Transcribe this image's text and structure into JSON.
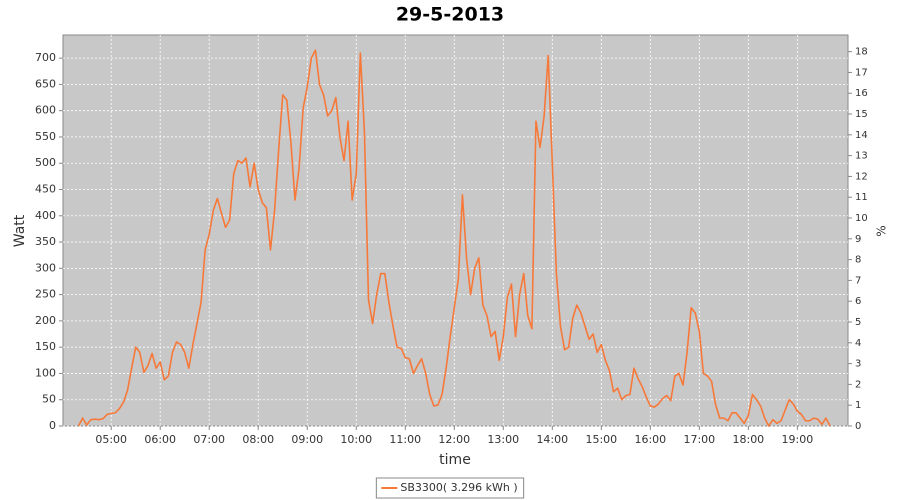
{
  "chart_data": {
    "type": "line",
    "title": "29-5-2013",
    "x_label": "time",
    "y_label": "Watt",
    "y2_label": "%",
    "x": [
      "04:20",
      "04:25",
      "04:30",
      "04:35",
      "04:40",
      "04:45",
      "04:50",
      "04:55",
      "05:00",
      "05:05",
      "05:10",
      "05:15",
      "05:20",
      "05:25",
      "05:30",
      "05:35",
      "05:40",
      "05:45",
      "05:50",
      "05:55",
      "06:00",
      "06:05",
      "06:10",
      "06:15",
      "06:20",
      "06:25",
      "06:30",
      "06:35",
      "06:40",
      "06:45",
      "06:50",
      "06:55",
      "07:00",
      "07:05",
      "07:10",
      "07:15",
      "07:20",
      "07:25",
      "07:30",
      "07:35",
      "07:40",
      "07:45",
      "07:50",
      "07:55",
      "08:00",
      "08:05",
      "08:10",
      "08:15",
      "08:20",
      "08:25",
      "08:30",
      "08:35",
      "08:40",
      "08:45",
      "08:50",
      "08:55",
      "09:00",
      "09:05",
      "09:10",
      "09:15",
      "09:20",
      "09:25",
      "09:30",
      "09:35",
      "09:40",
      "09:45",
      "09:50",
      "09:55",
      "10:00",
      "10:05",
      "10:10",
      "10:15",
      "10:20",
      "10:25",
      "10:30",
      "10:35",
      "10:40",
      "10:45",
      "10:50",
      "10:55",
      "11:00",
      "11:05",
      "11:10",
      "11:15",
      "11:20",
      "11:25",
      "11:30",
      "11:35",
      "11:40",
      "11:45",
      "11:50",
      "11:55",
      "12:00",
      "12:05",
      "12:10",
      "12:15",
      "12:20",
      "12:25",
      "12:30",
      "12:35",
      "12:40",
      "12:45",
      "12:50",
      "12:55",
      "13:00",
      "13:05",
      "13:10",
      "13:15",
      "13:20",
      "13:25",
      "13:30",
      "13:35",
      "13:40",
      "13:45",
      "13:50",
      "13:55",
      "14:00",
      "14:05",
      "14:10",
      "14:15",
      "14:20",
      "14:25",
      "14:30",
      "14:35",
      "14:40",
      "14:45",
      "14:50",
      "14:55",
      "15:00",
      "15:05",
      "15:10",
      "15:15",
      "15:20",
      "15:25",
      "15:30",
      "15:35",
      "15:40",
      "15:45",
      "15:50",
      "15:55",
      "16:00",
      "16:05",
      "16:10",
      "16:15",
      "16:20",
      "16:25",
      "16:30",
      "16:35",
      "16:40",
      "16:45",
      "16:50",
      "16:55",
      "17:00",
      "17:05",
      "17:10",
      "17:15",
      "17:20",
      "17:25",
      "17:30",
      "17:35",
      "17:40",
      "17:45",
      "17:50",
      "17:55",
      "18:00",
      "18:05",
      "18:10",
      "18:15",
      "18:20",
      "18:25",
      "18:30",
      "18:35",
      "18:40",
      "18:45",
      "18:50",
      "18:55",
      "19:00",
      "19:05",
      "19:10",
      "19:15",
      "19:20",
      "19:25",
      "19:30",
      "19:35",
      "19:40"
    ],
    "series": [
      {
        "name": "SB3300( 3.296 kWh )",
        "color": "#f7793a",
        "values": [
          0,
          15,
          2,
          12,
          13,
          12,
          14,
          22,
          24,
          25,
          33,
          45,
          68,
          110,
          150,
          140,
          102,
          115,
          138,
          110,
          122,
          88,
          95,
          140,
          160,
          155,
          140,
          110,
          155,
          195,
          235,
          335,
          365,
          410,
          433,
          405,
          378,
          392,
          480,
          505,
          500,
          510,
          455,
          500,
          450,
          425,
          415,
          335,
          410,
          525,
          630,
          620,
          540,
          430,
          490,
          605,
          645,
          700,
          715,
          650,
          630,
          590,
          600,
          625,
          550,
          505,
          580,
          430,
          480,
          710,
          560,
          240,
          195,
          250,
          290,
          290,
          235,
          190,
          150,
          148,
          130,
          128,
          100,
          115,
          128,
          100,
          60,
          38,
          40,
          60,
          110,
          170,
          225,
          280,
          440,
          320,
          250,
          300,
          320,
          230,
          210,
          170,
          180,
          125,
          170,
          245,
          270,
          170,
          250,
          290,
          210,
          185,
          580,
          530,
          590,
          705,
          500,
          290,
          190,
          145,
          150,
          205,
          230,
          215,
          190,
          165,
          175,
          140,
          155,
          125,
          105,
          65,
          72,
          50,
          58,
          60,
          110,
          90,
          75,
          55,
          38,
          36,
          42,
          52,
          58,
          48,
          95,
          100,
          78,
          140,
          225,
          215,
          180,
          100,
          95,
          85,
          40,
          15,
          15,
          10,
          25,
          25,
          15,
          5,
          20,
          60,
          50,
          38,
          15,
          0,
          12,
          5,
          10,
          30,
          50,
          42,
          28,
          22,
          10,
          10,
          15,
          13,
          3,
          15,
          0
        ]
      }
    ],
    "xlim": [
      "04:01",
      "20:02"
    ],
    "xticks": [
      "05:00",
      "06:00",
      "07:00",
      "08:00",
      "09:00",
      "10:00",
      "11:00",
      "12:00",
      "13:00",
      "14:00",
      "15:00",
      "16:00",
      "17:00",
      "18:00",
      "19:00"
    ],
    "ylim": [
      0,
      744
    ],
    "yticks": [
      0,
      50,
      100,
      150,
      200,
      250,
      300,
      350,
      400,
      450,
      500,
      550,
      600,
      650,
      700
    ],
    "y2lim": [
      0,
      18.8
    ],
    "y2ticks": [
      0,
      1,
      2,
      3,
      4,
      5,
      6,
      7,
      8,
      9,
      10,
      11,
      12,
      13,
      14,
      15,
      16,
      17,
      18
    ],
    "grid": true,
    "plot_background": "#c8c8c8",
    "legend": "bottom"
  }
}
